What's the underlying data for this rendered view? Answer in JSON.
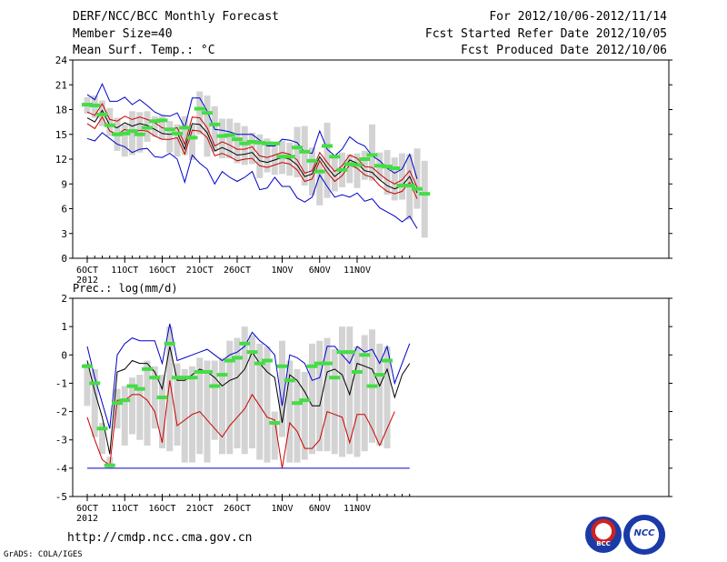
{
  "header": {
    "title": "DERF/NCC/BCC Monthly Forecast",
    "member_size": "Member Size=40",
    "variable": "Mean Surf. Temp.: °C",
    "period": "For 2012/10/06-2012/11/14",
    "fcst_start": "Fcst Started Refer Date 2012/10/05",
    "fcst_produced": "Fcst Produced Date 2012/10/06"
  },
  "footer": {
    "url": "http://cmdp.ncc.cma.gov.cn",
    "credit": "GrADS: COLA/IGES"
  },
  "logos": {
    "bcc": "BCC",
    "ncc": "NCC"
  },
  "colors": {
    "ensemble_max": "#0000cc",
    "ensemble_min": "#0000cc",
    "upper_band": "#cc0000",
    "lower_band": "#cc0000",
    "mean": "#000000",
    "median": "#44dd44",
    "spread": "#d3d3d3"
  },
  "chart_data": [
    {
      "type": "line",
      "title": "Mean Surf. Temp.: °C",
      "ylim": [
        0,
        24
      ],
      "yticks": [
        0,
        3,
        6,
        9,
        12,
        15,
        18,
        21,
        24
      ],
      "x_tick_days": [
        0,
        5,
        10,
        15,
        20,
        26,
        31,
        36
      ],
      "x_tick_labels": [
        "6OCT",
        "11OCT",
        "16OCT",
        "21OCT",
        "26OCT",
        "1NOV",
        "6NOV",
        "11NOV"
      ],
      "x_year_label": "2012",
      "days": 40,
      "series": [
        {
          "name": "ensemble_max",
          "values": [
            19.8,
            19.2,
            21.1,
            19.0,
            19.0,
            19.5,
            18.6,
            19.2,
            18.5,
            17.7,
            17.3,
            17.2,
            17.6,
            15.8,
            19.4,
            19.4,
            17.8,
            15.6,
            15.5,
            15.3,
            15.0,
            15.0,
            15.0,
            14.3,
            13.6,
            13.6,
            14.4,
            14.3,
            14.0,
            12.8,
            12.7,
            15.4,
            13.2,
            12.4,
            13.2,
            14.7,
            14.0,
            13.6,
            12.4,
            11.8,
            10.9,
            10.3,
            10.8,
            12.6,
            9.6
          ]
        },
        {
          "name": "upper_band",
          "values": [
            17.7,
            17.3,
            18.7,
            16.8,
            16.6,
            17.2,
            16.8,
            17.1,
            16.8,
            16.4,
            15.8,
            15.6,
            15.8,
            13.8,
            17.1,
            17.0,
            15.8,
            13.6,
            14.1,
            13.7,
            13.2,
            13.2,
            13.5,
            12.4,
            12.2,
            12.5,
            12.8,
            12.6,
            11.9,
            10.3,
            10.6,
            12.8,
            11.6,
            10.5,
            11.2,
            12.5,
            12.1,
            11.1,
            11.0,
            10.2,
            9.5,
            9.0,
            9.5,
            10.6,
            8.6
          ]
        },
        {
          "name": "mean",
          "values": [
            17.0,
            16.5,
            17.9,
            16.1,
            15.8,
            16.4,
            16.0,
            16.3,
            16.1,
            15.6,
            15.1,
            15.0,
            15.2,
            13.2,
            16.3,
            16.2,
            15.2,
            13.0,
            13.4,
            13.0,
            12.5,
            12.6,
            12.8,
            11.8,
            11.6,
            11.9,
            12.2,
            12.0,
            11.3,
            9.9,
            10.2,
            12.3,
            11.0,
            9.9,
            10.6,
            11.9,
            11.5,
            10.6,
            10.4,
            9.5,
            8.8,
            8.4,
            8.8,
            9.9,
            7.9
          ]
        },
        {
          "name": "lower_band",
          "values": [
            16.3,
            15.7,
            17.1,
            15.4,
            15.0,
            15.6,
            15.2,
            15.5,
            15.4,
            14.8,
            14.4,
            14.4,
            14.6,
            12.6,
            15.5,
            15.4,
            14.6,
            12.4,
            12.7,
            12.3,
            11.8,
            12.0,
            12.1,
            11.2,
            11.0,
            11.3,
            11.6,
            11.4,
            10.7,
            9.3,
            9.6,
            11.8,
            10.4,
            9.3,
            10.0,
            11.3,
            10.9,
            10.1,
            9.8,
            8.8,
            8.1,
            7.8,
            8.1,
            9.2,
            7.2
          ]
        },
        {
          "name": "ensemble_min",
          "values": [
            14.5,
            14.2,
            15.2,
            14.5,
            13.8,
            13.5,
            12.8,
            13.2,
            13.3,
            12.3,
            12.2,
            12.7,
            12.0,
            9.2,
            12.5,
            11.5,
            10.8,
            9.0,
            10.5,
            9.8,
            9.3,
            9.8,
            10.5,
            8.3,
            8.5,
            9.8,
            8.7,
            8.7,
            7.3,
            6.8,
            7.4,
            10.1,
            8.7,
            7.4,
            7.7,
            7.4,
            7.9,
            6.9,
            7.2,
            6.1,
            5.6,
            5.1,
            4.4,
            5.1,
            3.6
          ]
        },
        {
          "name": "median",
          "values": [
            18.6,
            18.5,
            17.4,
            16.1,
            15.0,
            15.1,
            15.4,
            15.0,
            15.8,
            16.6,
            16.7,
            15.6,
            15.1,
            15.8,
            14.6,
            18.1,
            17.6,
            16.2,
            14.8,
            14.9,
            14.4,
            13.9,
            14.1,
            14.0,
            13.9,
            13.9,
            12.3,
            12.3,
            13.4,
            12.9,
            11.8,
            10.5,
            13.6,
            12.3,
            10.7,
            11.4,
            11.3,
            12.0,
            12.5,
            11.2,
            11.1,
            10.9,
            8.8,
            8.8,
            8.4,
            7.8
          ]
        },
        {
          "name": "spread_min",
          "values": [
            17.5,
            17.0,
            16.0,
            14.8,
            13.0,
            12.3,
            12.5,
            12.8,
            14.1,
            14.7,
            14.4,
            12.8,
            12.3,
            12.5,
            11.9,
            15.0,
            12.3,
            12.9,
            12.1,
            12.1,
            11.5,
            11.3,
            11.4,
            9.7,
            10.4,
            10.1,
            10.2,
            10.0,
            9.8,
            8.8,
            7.6,
            6.4,
            7.3,
            8.1,
            8.6,
            9.1,
            8.5,
            9.5,
            9.4,
            9.5,
            7.7,
            7.0,
            7.1,
            4.7,
            6.0,
            2.5
          ]
        },
        {
          "name": "spread_max",
          "values": [
            19.5,
            19.7,
            19.1,
            18.2,
            17.0,
            16.2,
            17.8,
            17.7,
            17.8,
            17.2,
            17.3,
            16.6,
            16.2,
            17.2,
            16.2,
            20.2,
            19.7,
            18.4,
            16.9,
            16.9,
            16.4,
            16.0,
            15.2,
            15.0,
            14.5,
            14.1,
            14.2,
            14.0,
            15.9,
            16.0,
            13.4,
            12.1,
            16.4,
            12.5,
            12.8,
            12.6,
            12.7,
            13.0,
            16.2,
            12.8,
            13.1,
            12.2,
            12.7,
            12.6,
            13.3,
            11.8
          ]
        }
      ]
    },
    {
      "type": "line",
      "title": "Prec.: log(mm/d)",
      "ylim": [
        -5,
        2
      ],
      "yticks": [
        -5,
        -4,
        -3,
        -2,
        -1,
        0,
        1,
        2
      ],
      "x_tick_days": [
        0,
        5,
        10,
        15,
        20,
        26,
        31,
        36
      ],
      "x_tick_labels": [
        "6OCT",
        "11OCT",
        "16OCT",
        "21OCT",
        "26OCT",
        "1NOV",
        "6NOV",
        "11NOV"
      ],
      "x_year_label": "2012",
      "days": 40,
      "series": [
        {
          "name": "ensemble_max",
          "values": [
            0.3,
            -0.8,
            -1.7,
            -2.6,
            0.0,
            0.4,
            0.6,
            0.5,
            0.5,
            0.5,
            -0.3,
            1.1,
            -0.2,
            -0.1,
            0.0,
            0.1,
            0.2,
            0.0,
            -0.2,
            0.0,
            0.1,
            0.3,
            0.8,
            0.5,
            0.3,
            0.0,
            -1.8,
            0.0,
            -0.1,
            -0.3,
            -0.9,
            -0.8,
            0.3,
            0.3,
            0.0,
            -0.3,
            0.3,
            0.1,
            0.2,
            -0.3,
            0.3,
            -1.0,
            -0.3,
            0.4
          ]
        },
        {
          "name": "mean",
          "values": [
            -0.2,
            -1.3,
            -2.2,
            -3.5,
            -0.6,
            -0.5,
            -0.2,
            -0.3,
            -0.3,
            -0.6,
            -1.2,
            0.3,
            -0.9,
            -0.9,
            -0.7,
            -0.5,
            -0.6,
            -0.8,
            -1.1,
            -0.9,
            -0.8,
            -0.5,
            0.1,
            -0.3,
            -0.6,
            -0.8,
            -2.4,
            -0.7,
            -0.9,
            -1.3,
            -1.8,
            -1.8,
            -0.6,
            -0.5,
            -0.7,
            -1.4,
            -0.3,
            -0.4,
            -0.5,
            -1.1,
            -0.5,
            -1.5,
            -0.7,
            -0.3
          ]
        },
        {
          "name": "lower_band",
          "values": [
            -2.2,
            -3.0,
            -3.7,
            -3.9,
            -1.6,
            -1.6,
            -1.4,
            -1.4,
            -1.6,
            -2.0,
            -3.1,
            -0.9,
            -2.5,
            -2.3,
            -2.1,
            -2.0,
            -2.3,
            -2.6,
            -2.9,
            -2.5,
            -2.2,
            -1.9,
            -1.4,
            -1.8,
            -2.2,
            -2.3,
            -4.0,
            -2.4,
            -2.7,
            -3.3,
            -3.3,
            -3.0,
            -2.0,
            -2.1,
            -2.2,
            -3.1,
            -2.1,
            -2.1,
            -2.6,
            -3.2,
            -2.6,
            -2.0
          ]
        },
        {
          "name": "ensemble_min",
          "values": [
            -4,
            -4,
            -4,
            -4,
            -4,
            -4,
            -4,
            -4,
            -4,
            -4,
            -4,
            -4,
            -4,
            -4,
            -4,
            -4,
            -4,
            -4,
            -4,
            -4,
            -4,
            -4,
            -4,
            -4,
            -4,
            -4,
            -4,
            -4,
            -4,
            -4,
            -4,
            -4,
            -4,
            -4,
            -4,
            -4,
            -4,
            -4,
            -4,
            -4,
            -4,
            -4,
            -4,
            -4
          ]
        },
        {
          "name": "median",
          "values": [
            -0.4,
            -1.0,
            -2.6,
            -3.9,
            -1.7,
            -1.6,
            -1.1,
            -1.2,
            -0.5,
            -0.8,
            -1.5,
            0.4,
            -0.8,
            -0.8,
            -0.8,
            -0.6,
            -0.6,
            -1.1,
            -0.7,
            -0.2,
            -0.1,
            0.4,
            0.1,
            -0.3,
            -0.2,
            -2.4,
            -0.4,
            -0.9,
            -1.7,
            -1.6,
            -0.4,
            -0.3,
            -0.3,
            -0.8,
            0.1,
            0.1,
            -0.6,
            0.0,
            -1.1,
            -0.7,
            -0.2
          ]
        },
        {
          "name": "spread_min",
          "values": [
            -1.8,
            -2.9,
            -3.5,
            -4.0,
            -2.6,
            -3.2,
            -2.8,
            -3.0,
            -3.2,
            -2.6,
            -3.3,
            -3.4,
            -3.2,
            -3.8,
            -3.8,
            -3.5,
            -3.8,
            -3.0,
            -3.5,
            -3.5,
            -3.3,
            -3.5,
            -3.3,
            -3.7,
            -3.8,
            -3.7,
            -2.9,
            -3.8,
            -3.8,
            -3.7,
            -3.5,
            -3.4,
            -3.4,
            -3.5,
            -3.6,
            -3.5,
            -3.6,
            -3.4,
            -3.1,
            -3.2,
            -3.3,
            -3.6,
            -3.5,
            -3.5
          ]
        },
        {
          "name": "spread_max",
          "values": [
            -0.3,
            -0.5,
            -2.4,
            -3.6,
            -1.2,
            -1.1,
            -0.8,
            -0.7,
            -0.2,
            -0.4,
            -0.7,
            1.0,
            -0.3,
            -0.5,
            -0.4,
            -0.1,
            -0.2,
            -0.2,
            -0.1,
            0.5,
            0.6,
            1.0,
            0.7,
            0.4,
            0.3,
            -2.0,
            0.5,
            -0.2,
            -0.5,
            -0.6,
            0.4,
            0.5,
            0.6,
            0.2,
            1.0,
            1.0,
            0.3,
            0.7,
            0.9,
            0.4,
            0.3
          ]
        }
      ]
    }
  ]
}
